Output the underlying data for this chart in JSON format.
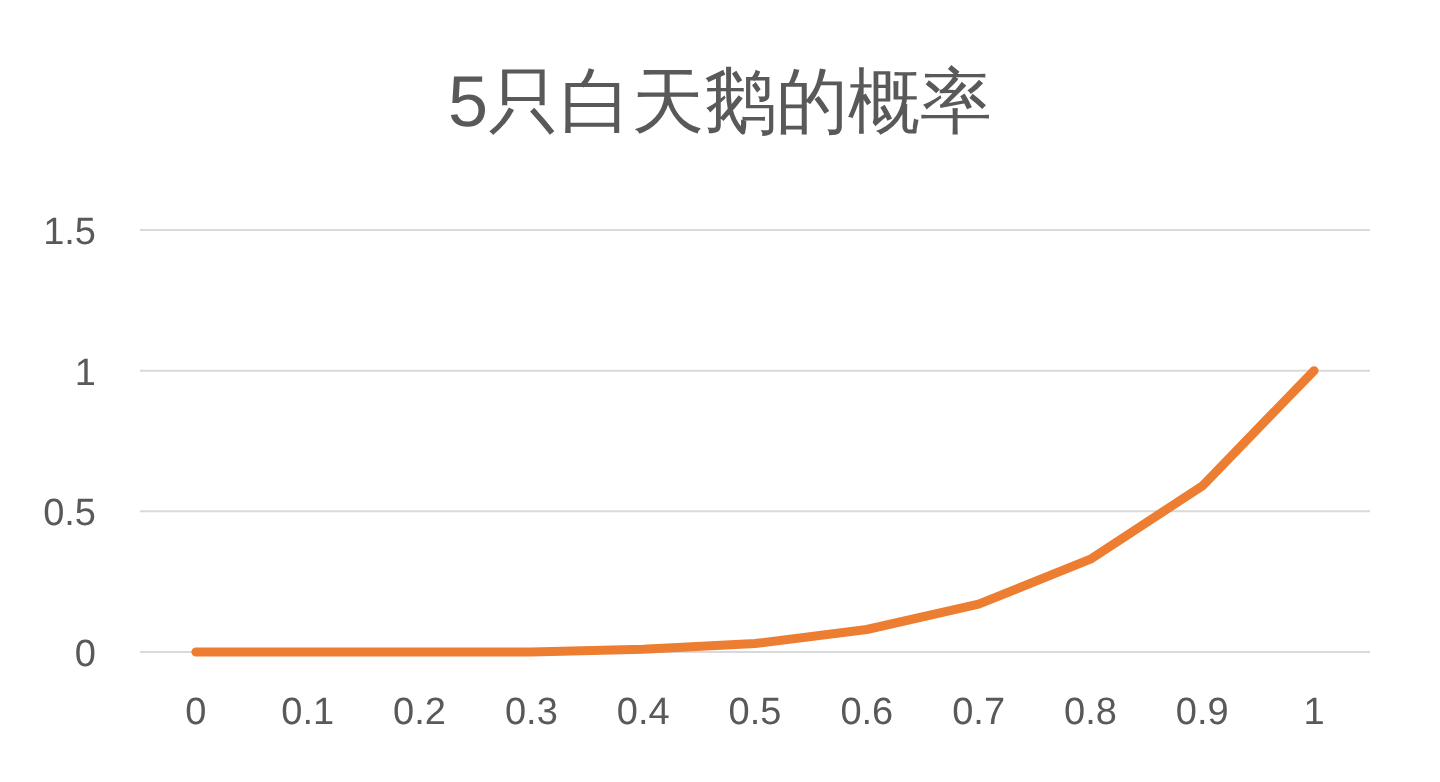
{
  "chart_data": {
    "type": "line",
    "title": "5只白天鹅的概率",
    "categories": [
      "0",
      "0.1",
      "0.2",
      "0.3",
      "0.4",
      "0.5",
      "0.6",
      "0.7",
      "0.8",
      "0.9",
      "1"
    ],
    "series": [
      {
        "color": "#ed7d31",
        "values": [
          0,
          0,
          0,
          0,
          0.01,
          0.03,
          0.08,
          0.17,
          0.33,
          0.59,
          1
        ]
      }
    ],
    "ylim": [
      0,
      1.5
    ],
    "yticks": [
      0,
      0.5,
      1,
      1.5
    ],
    "grid": "y",
    "marker": "none",
    "line_style": "solid"
  }
}
